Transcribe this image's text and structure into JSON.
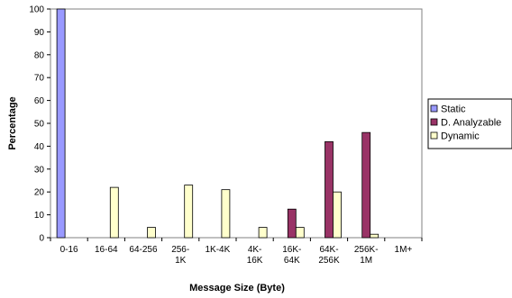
{
  "chart_data": {
    "type": "bar",
    "title": "",
    "xlabel": "Message Size (Byte)",
    "ylabel": "Percentage",
    "ylim": [
      0,
      100
    ],
    "yticks": [
      0,
      10,
      20,
      30,
      40,
      50,
      60,
      70,
      80,
      90,
      100
    ],
    "grid": false,
    "legend_position": "right",
    "categories": [
      "0-16",
      "16-64",
      "64-256",
      "256-1K",
      "1K-4K",
      "4K-16K",
      "16K-64K",
      "64K-256K",
      "256K-1M",
      "1M+"
    ],
    "category_labels": [
      [
        "0-16"
      ],
      [
        "16-64"
      ],
      [
        "64-256"
      ],
      [
        "256-",
        "1K"
      ],
      [
        "1K-4K"
      ],
      [
        "4K-",
        "16K"
      ],
      [
        "16K-",
        "64K"
      ],
      [
        "64K-",
        "256K"
      ],
      [
        "256K-",
        "1M"
      ],
      [
        "1M+"
      ]
    ],
    "series": [
      {
        "name": "Static",
        "color": "#9999ff",
        "values": [
          100,
          0,
          0,
          0,
          0,
          0,
          0,
          0,
          0,
          0
        ]
      },
      {
        "name": "D. Analyzable",
        "color": "#993366",
        "values": [
          0,
          0,
          0,
          0,
          0,
          0,
          12.5,
          42,
          46,
          0
        ]
      },
      {
        "name": "Dynamic",
        "color": "#ffffcc",
        "values": [
          0,
          22,
          4.5,
          23,
          21,
          4.5,
          4.5,
          20,
          1.5,
          0
        ]
      }
    ]
  }
}
